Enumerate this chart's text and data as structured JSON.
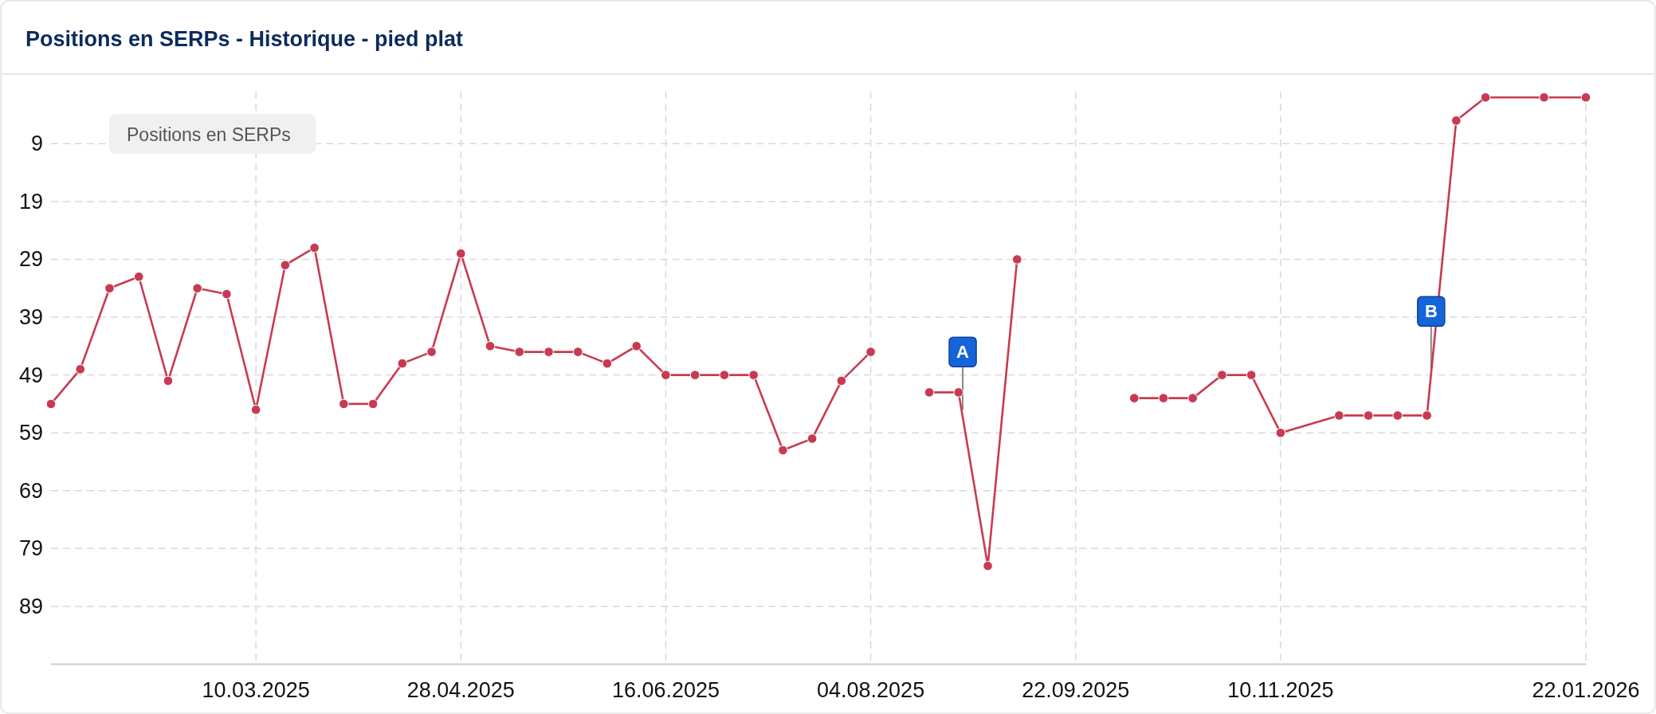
{
  "chart_data": {
    "type": "line",
    "title": "Positions en SERPs - Historique - pied plat",
    "x": [
      "2025-01-20",
      "2025-01-27",
      "2025-02-03",
      "2025-02-10",
      "2025-02-17",
      "2025-02-24",
      "2025-03-03",
      "2025-03-10",
      "2025-03-17",
      "2025-03-24",
      "2025-03-31",
      "2025-04-07",
      "2025-04-14",
      "2025-04-21",
      "2025-04-28",
      "2025-05-05",
      "2025-05-12",
      "2025-05-19",
      "2025-05-26",
      "2025-06-02",
      "2025-06-09",
      "2025-06-16",
      "2025-06-23",
      "2025-06-30",
      "2025-07-07",
      "2025-07-14",
      "2025-07-21",
      "2025-07-28",
      "2025-08-04",
      "2025-08-11",
      "2025-08-18",
      "2025-08-25",
      "2025-09-01",
      "2025-09-08",
      "2025-09-15",
      "2025-09-22",
      "2025-09-29",
      "2025-10-06",
      "2025-10-13",
      "2025-10-20",
      "2025-10-27",
      "2025-11-03",
      "2025-11-10",
      "2025-11-24",
      "2025-12-01",
      "2025-12-08",
      "2025-12-15",
      "2025-12-22",
      "2025-12-29",
      "2026-01-12",
      "2026-01-22"
    ],
    "values": [
      54,
      48,
      34,
      32,
      50,
      34,
      35,
      55,
      30,
      27,
      54,
      54,
      47,
      45,
      28,
      44,
      45,
      45,
      45,
      47,
      44,
      49,
      49,
      49,
      49,
      62,
      60,
      50,
      45,
      null,
      52,
      52,
      82,
      29,
      null,
      null,
      null,
      53,
      53,
      53,
      49,
      49,
      59,
      56,
      56,
      56,
      56,
      5,
      1,
      1,
      1
    ],
    "color": "#c73b52",
    "marker": "circle",
    "xlim": [
      "2025-01-20",
      "2026-01-22"
    ],
    "xticks": [
      {
        "value": "2025-03-10",
        "label": "10.03.2025"
      },
      {
        "value": "2025-04-28",
        "label": "28.04.2025"
      },
      {
        "value": "2025-06-16",
        "label": "16.06.2025"
      },
      {
        "value": "2025-08-04",
        "label": "04.08.2025"
      },
      {
        "value": "2025-09-22",
        "label": "22.09.2025"
      },
      {
        "value": "2025-11-10",
        "label": "10.11.2025"
      },
      {
        "value": "2026-01-22",
        "label": "22.01.2026"
      }
    ],
    "ylim": [
      99,
      0
    ],
    "yticks": [
      9,
      19,
      29,
      39,
      49,
      59,
      69,
      79,
      89
    ],
    "grid": true,
    "annotations": [
      "Positions en SERPs",
      {
        "text": "A",
        "x": "2025-08-26",
        "y": 55
      },
      {
        "text": "B",
        "x": "2025-12-16",
        "y": 48
      }
    ]
  }
}
